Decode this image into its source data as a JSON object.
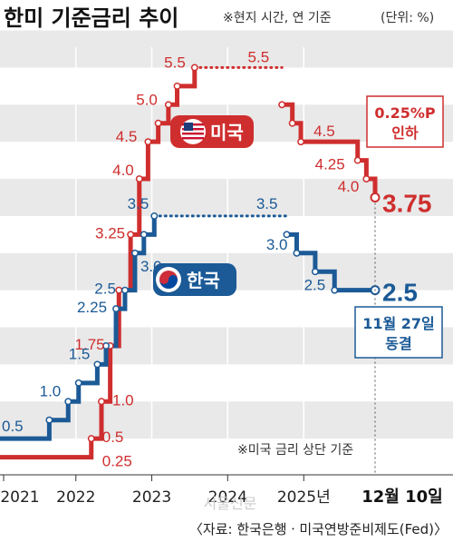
{
  "title": "한미 기준금리 추이",
  "subtitle": "※현지 시간, 연 기준",
  "unit_note": "(단위: %)",
  "bottom_note": "※미국 금리 상단 기준",
  "source": "〈자료: 한국은행ㆍ미국연방준비제도(Fed)〉",
  "watermark": "서울신문",
  "legend": {
    "us": "미국",
    "kr": "한국"
  },
  "annotations": {
    "us": "0.25%P\n인하",
    "kr": "11월 27일\n동결",
    "date": "12월 10일"
  },
  "colors": {
    "us": "#cf2e2e",
    "kr": "#1b5a96",
    "band": "#e9e9e9",
    "us_badge_text": "#ffffff",
    "kr_badge_text": "#ffffff"
  },
  "chart_data": {
    "type": "line",
    "step": true,
    "x_axis": {
      "ticks": [
        "2021",
        "2022",
        "2023",
        "2024",
        "2025년"
      ],
      "range": [
        "2021-01-01",
        "2025-12-10"
      ]
    },
    "y_axis": {
      "range": [
        0,
        5.75
      ]
    },
    "series": [
      {
        "name": "미국",
        "points": [
          {
            "x": "2021-01-01",
            "y": 0.25
          },
          {
            "x": "2022-03-16",
            "y": 0.5
          },
          {
            "x": "2022-05-04",
            "y": 1.0
          },
          {
            "x": "2022-06-15",
            "y": 1.75
          },
          {
            "x": "2022-07-27",
            "y": 2.5
          },
          {
            "x": "2022-09-21",
            "y": 3.25
          },
          {
            "x": "2022-11-02",
            "y": 4.0
          },
          {
            "x": "2022-12-14",
            "y": 4.5
          },
          {
            "x": "2023-02-01",
            "y": 4.75
          },
          {
            "x": "2023-03-22",
            "y": 5.0
          },
          {
            "x": "2023-05-03",
            "y": 5.25
          },
          {
            "x": "2023-07-26",
            "y": 5.5
          },
          {
            "x": "2024-09-18",
            "y": 5.0
          },
          {
            "x": "2024-11-07",
            "y": 4.75
          },
          {
            "x": "2024-12-18",
            "y": 4.5
          },
          {
            "x": "2025-09-17",
            "y": 4.25
          },
          {
            "x": "2025-10-29",
            "y": 4.0
          },
          {
            "x": "2025-12-10",
            "y": 3.75
          }
        ],
        "labels": [
          {
            "text": "0.25",
            "y": 0.25,
            "x": "2022-03-16"
          },
          {
            "text": "0.5",
            "y": 0.5,
            "x": "2022-03-16"
          },
          {
            "text": "1.0",
            "y": 1.0,
            "x": "2022-05-04"
          },
          {
            "text": "1.75",
            "y": 1.75,
            "x": "2022-06-15"
          },
          {
            "text": "3.25",
            "y": 3.25,
            "x": "2022-09-21"
          },
          {
            "text": "4.0",
            "y": 4.0,
            "x": "2022-11-02"
          },
          {
            "text": "4.5",
            "y": 4.5,
            "x": "2022-12-14"
          },
          {
            "text": "5.0",
            "y": 5.0,
            "x": "2023-03-22"
          },
          {
            "text": "5.5",
            "y": 5.5,
            "x": "2023-07-26"
          },
          {
            "text": "5.5",
            "y": 5.5,
            "x": "2024-09-18"
          },
          {
            "text": "4.5",
            "y": 4.5,
            "x": "2024-12-18"
          },
          {
            "text": "4.25",
            "y": 4.25,
            "x": "2025-09-17"
          },
          {
            "text": "4.0",
            "y": 4.0,
            "x": "2025-10-29"
          },
          {
            "text": "3.75",
            "y": 3.75,
            "x": "2025-12-10"
          }
        ]
      },
      {
        "name": "한국",
        "points": [
          {
            "x": "2021-01-01",
            "y": 0.5
          },
          {
            "x": "2021-08-26",
            "y": 0.75
          },
          {
            "x": "2021-11-25",
            "y": 1.0
          },
          {
            "x": "2022-01-14",
            "y": 1.25
          },
          {
            "x": "2022-04-14",
            "y": 1.5
          },
          {
            "x": "2022-05-26",
            "y": 1.75
          },
          {
            "x": "2022-07-13",
            "y": 2.25
          },
          {
            "x": "2022-08-25",
            "y": 2.5
          },
          {
            "x": "2022-10-12",
            "y": 3.0
          },
          {
            "x": "2022-11-24",
            "y": 3.25
          },
          {
            "x": "2023-01-13",
            "y": 3.5
          },
          {
            "x": "2024-10-11",
            "y": 3.25
          },
          {
            "x": "2024-11-28",
            "y": 3.0
          },
          {
            "x": "2025-02-25",
            "y": 2.75
          },
          {
            "x": "2025-05-29",
            "y": 2.5
          },
          {
            "x": "2025-12-10",
            "y": 2.5
          }
        ],
        "labels": [
          {
            "text": "0.5",
            "y": 0.5,
            "x": "2021-01-01"
          },
          {
            "text": "1.0",
            "y": 1.0,
            "x": "2021-11-25"
          },
          {
            "text": "1.5",
            "y": 1.5,
            "x": "2022-04-14"
          },
          {
            "text": "2.25",
            "y": 2.25,
            "x": "2022-07-13"
          },
          {
            "text": "2.5",
            "y": 2.5,
            "x": "2022-08-25"
          },
          {
            "text": "3.0",
            "y": 3.0,
            "x": "2022-10-12"
          },
          {
            "text": "3.5",
            "y": 3.5,
            "x": "2023-01-13"
          },
          {
            "text": "3.5",
            "y": 3.5,
            "x": "2024-10-11"
          },
          {
            "text": "3.0",
            "y": 3.0,
            "x": "2024-11-28"
          },
          {
            "text": "2.5",
            "y": 2.5,
            "x": "2025-05-29"
          },
          {
            "text": "2.5",
            "y": 2.5,
            "x": "2025-12-10"
          }
        ]
      }
    ]
  }
}
